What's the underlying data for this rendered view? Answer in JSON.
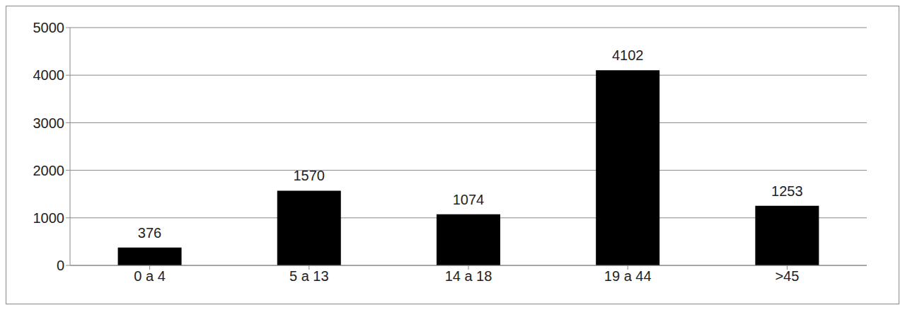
{
  "chart_data": {
    "type": "bar",
    "categories": [
      "0 a 4",
      "5 a 13",
      "14 a 18",
      "19 a 44",
      ">45"
    ],
    "values": [
      376,
      1570,
      1074,
      4102,
      1253
    ],
    "color": "#000000",
    "ylim": [
      0,
      5000
    ],
    "yticks": [
      0,
      1000,
      2000,
      3000,
      4000,
      5000
    ],
    "grid": true,
    "data_labels": true
  }
}
